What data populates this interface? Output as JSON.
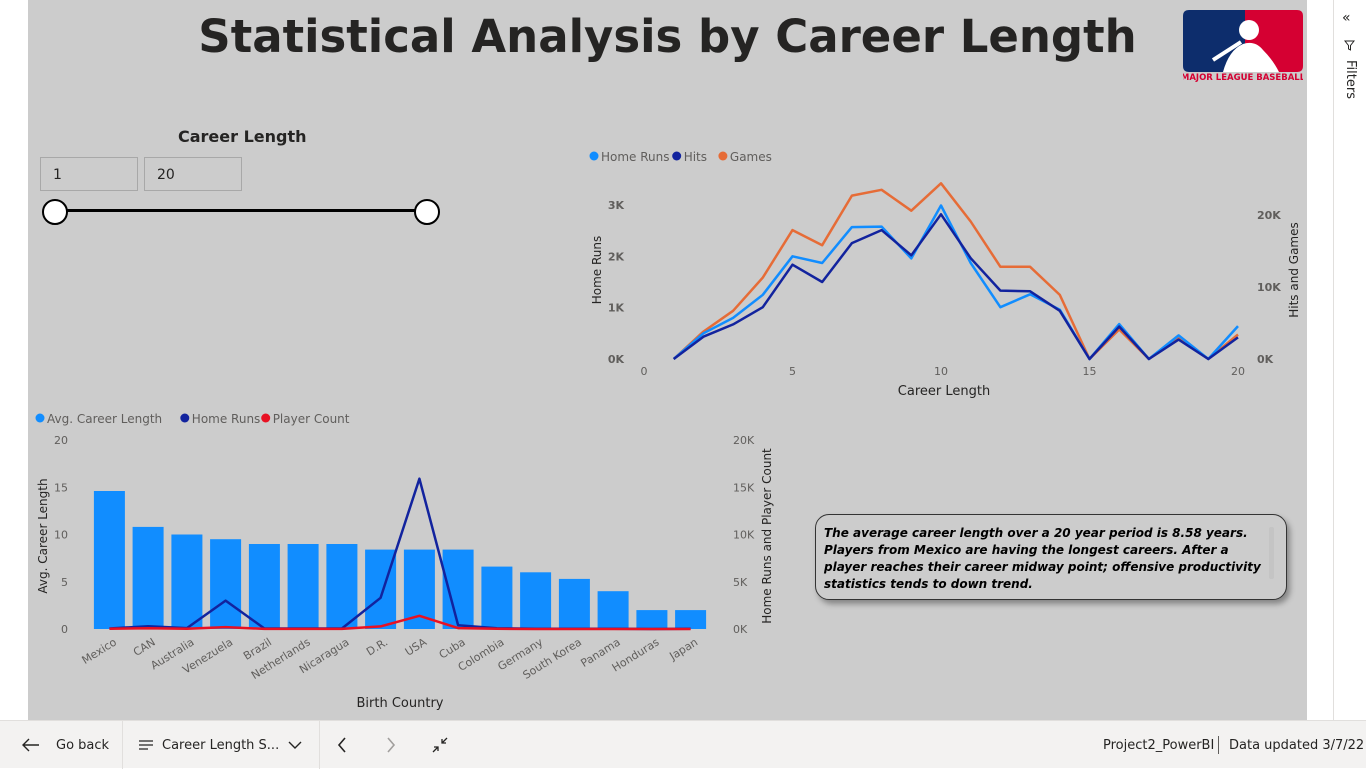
{
  "report": {
    "title": "Statistical Analysis by Career Length",
    "logo_text": "MAJOR LEAGUE BASEBALL"
  },
  "slicer": {
    "title": "Career Length",
    "min_value": "1",
    "max_value": "20"
  },
  "insight": {
    "text": "The average career length over a 20 year period is 8.58 years. Players from Mexico are having the longest careers.  After a player reaches their career midway point; offensive productivity statistics tends to down trend."
  },
  "filters_pane": {
    "label": "Filters"
  },
  "bottom_bar": {
    "go_back": "Go back",
    "page_name": "Career Length S...",
    "report_name": "Project2_PowerBI",
    "data_updated": "Data updated 3/7/22"
  },
  "chart_data": [
    {
      "type": "line",
      "xlabel": "Career Length",
      "ylabel": "Home Runs",
      "y2label": "Hits and Games",
      "legend_position": "top-left",
      "x": [
        1,
        2,
        3,
        4,
        5,
        6,
        7,
        8,
        9,
        10,
        11,
        12,
        13,
        14,
        15,
        16,
        17,
        18,
        19,
        20
      ],
      "xlim": [
        0,
        20
      ],
      "xticks": [
        "0",
        "5",
        "10",
        "15",
        "20"
      ],
      "ylim": [
        0,
        3000
      ],
      "yticks": [
        "0K",
        "1K",
        "2K",
        "3K"
      ],
      "y2lim": [
        0,
        20000
      ],
      "y2ticks": [
        "0K",
        "10K",
        "20K"
      ],
      "series": [
        {
          "name": "Home Runs",
          "color": "#118dff",
          "axis": "left",
          "values": [
            0,
            500,
            800,
            1250,
            2000,
            1870,
            2570,
            2580,
            1960,
            2990,
            1870,
            1010,
            1260,
            960,
            0,
            680,
            0,
            460,
            0,
            640
          ]
        },
        {
          "name": "Hits",
          "color": "#12239e",
          "axis": "right",
          "values": [
            0,
            3100,
            4800,
            7200,
            13100,
            10700,
            16100,
            17900,
            14400,
            20100,
            14000,
            9500,
            9400,
            6700,
            0,
            4500,
            0,
            2700,
            0,
            3000
          ]
        },
        {
          "name": "Games",
          "color": "#e66c37",
          "axis": "right",
          "values": [
            0,
            3800,
            6700,
            11300,
            17900,
            15800,
            22700,
            23500,
            20600,
            24400,
            19100,
            12800,
            12800,
            8900,
            0,
            4100,
            0,
            2900,
            0,
            3400
          ]
        }
      ]
    },
    {
      "type": "bar",
      "xlabel": "Birth Country",
      "ylabel": "Avg. Career Length",
      "y2label": "Home Runs and Player Count",
      "legend_position": "top-left",
      "categories": [
        "Mexico",
        "CAN",
        "Australia",
        "Venezuela",
        "Brazil",
        "Netherlands",
        "Nicaragua",
        "D.R.",
        "USA",
        "Cuba",
        "Colombia",
        "Germany",
        "South Korea",
        "Panama",
        "Honduras",
        "Japan"
      ],
      "ylim": [
        0,
        20
      ],
      "yticks": [
        "0",
        "5",
        "10",
        "15",
        "20"
      ],
      "y2lim": [
        0,
        20000
      ],
      "y2ticks": [
        "0K",
        "5K",
        "10K",
        "15K",
        "20K"
      ],
      "series": [
        {
          "name": "Avg. Career Length",
          "type": "bar",
          "color": "#118dff",
          "axis": "left",
          "values": [
            14.6,
            10.8,
            10.0,
            9.5,
            9.0,
            9.0,
            9.0,
            8.4,
            8.4,
            8.4,
            6.6,
            6.0,
            5.3,
            4.0,
            2.0,
            2.0
          ]
        },
        {
          "name": "Home Runs",
          "type": "line",
          "color": "#12239e",
          "axis": "right",
          "values": [
            50,
            300,
            100,
            3000,
            50,
            50,
            50,
            3300,
            15900,
            400,
            80,
            20,
            20,
            20,
            0,
            20
          ]
        },
        {
          "name": "Player Count",
          "type": "line",
          "color": "#e81123",
          "axis": "right",
          "values": [
            30,
            80,
            20,
            200,
            10,
            10,
            10,
            280,
            1400,
            100,
            20,
            5,
            5,
            5,
            0,
            5
          ]
        }
      ]
    }
  ]
}
